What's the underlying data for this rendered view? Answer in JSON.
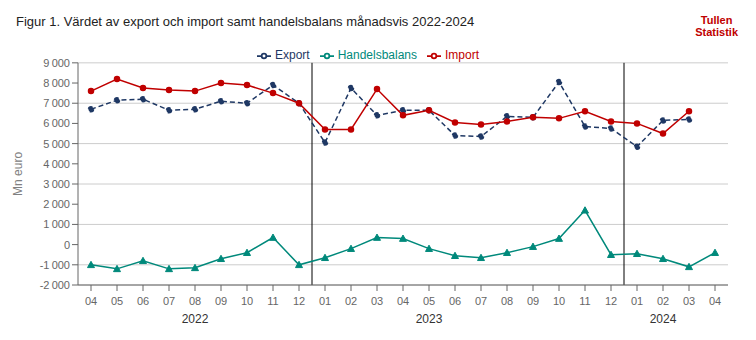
{
  "chart_data": {
    "type": "line",
    "title": "Figur 1. Värdet av export och import samt handelsbalans månadsvis 2022-2024",
    "y_label": "Mn euro",
    "categories": [
      "04",
      "05",
      "06",
      "07",
      "08",
      "09",
      "10",
      "11",
      "12",
      "01",
      "02",
      "03",
      "04",
      "05",
      "06",
      "07",
      "08",
      "09",
      "10",
      "11",
      "12",
      "01",
      "02",
      "03",
      "04"
    ],
    "series": [
      {
        "name": "Export",
        "color": "#1F3864",
        "marker": "circle",
        "line_style": "dashed",
        "values": [
          6700,
          7150,
          7200,
          6650,
          6700,
          7100,
          7000,
          7900,
          7000,
          5050,
          7750,
          6400,
          6650,
          6650,
          5400,
          5350,
          6350,
          6300,
          8050,
          5850,
          5750,
          4850,
          6150,
          6200,
          null
        ]
      },
      {
        "name": "Import",
        "color": "#C00000",
        "marker": "circle",
        "line_style": "solid",
        "values": [
          7600,
          8200,
          7750,
          7650,
          7600,
          8000,
          7900,
          7500,
          7000,
          5700,
          5700,
          7700,
          6400,
          6650,
          6050,
          5950,
          6100,
          6300,
          6250,
          6600,
          6100,
          6000,
          5500,
          6600,
          null
        ]
      },
      {
        "name": "Handelsbalans",
        "color": "#00897B",
        "marker": "triangle",
        "line_style": "solid",
        "values": [
          -1000,
          -1200,
          -800,
          -1200,
          -1150,
          -700,
          -400,
          350,
          -1000,
          -650,
          -200,
          350,
          300,
          -200,
          -550,
          -650,
          -400,
          -100,
          300,
          1700,
          -500,
          -450,
          -700,
          -1100,
          -400
        ]
      }
    ],
    "ylim": [
      -2000,
      9000
    ],
    "yticks": [
      {
        "value": -2000,
        "label": "-2 000"
      },
      {
        "value": -1000,
        "label": "-1 000"
      },
      0,
      {
        "value": 1000,
        "label": "1 000"
      },
      {
        "value": 2000,
        "label": "2 000"
      },
      {
        "value": 3000,
        "label": "3 000"
      },
      {
        "value": 4000,
        "label": "4 000"
      },
      {
        "value": 5000,
        "label": "5 000"
      },
      {
        "value": 6000,
        "label": "6 000"
      },
      {
        "value": 7000,
        "label": "7 000"
      },
      {
        "value": 8000,
        "label": "8 000"
      },
      {
        "value": 9000,
        "label": "9 000"
      }
    ],
    "grid": true,
    "legend": "top",
    "annotations": [
      {
        "text": "2022",
        "x": 4
      },
      {
        "text": "2023",
        "x": 13
      },
      {
        "text": "2024",
        "x": 22
      },
      {
        "text": "Tullen\nStatistik"
      }
    ]
  }
}
